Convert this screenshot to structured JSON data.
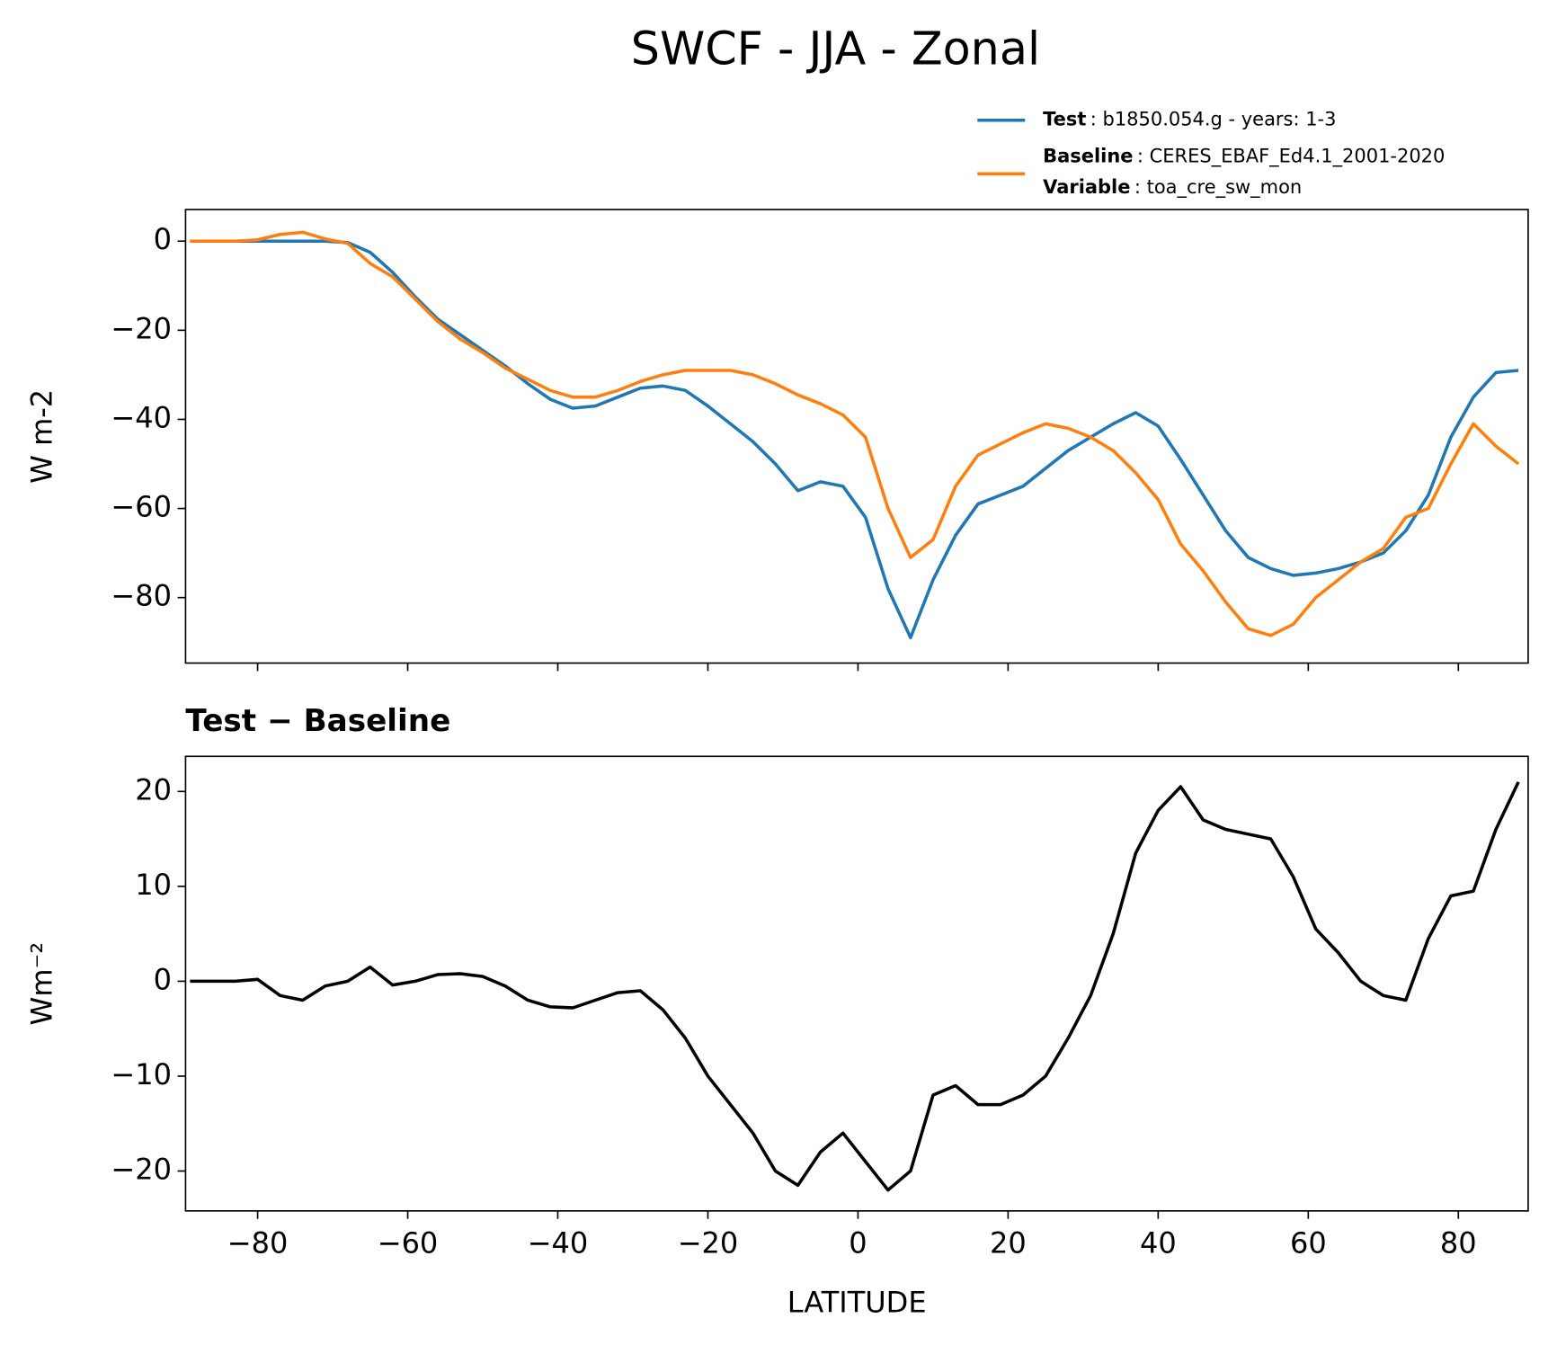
{
  "title": "SWCF - JJA - Zonal",
  "chart_data": [
    {
      "type": "line",
      "ylabel": "W m-2",
      "show_xtick_labels": false,
      "x": [
        -89,
        -86,
        -83,
        -80,
        -77,
        -74,
        -71,
        -68,
        -65,
        -62,
        -59,
        -56,
        -53,
        -50,
        -47,
        -44,
        -41,
        -38,
        -35,
        -32,
        -29,
        -26,
        -23,
        -20,
        -17,
        -14,
        -11,
        -8,
        -5,
        -2,
        1,
        4,
        7,
        10,
        13,
        16,
        19,
        22,
        25,
        28,
        31,
        34,
        37,
        40,
        43,
        46,
        49,
        52,
        55,
        58,
        61,
        64,
        67,
        70,
        73,
        76,
        79,
        82,
        85,
        88
      ],
      "series": [
        {
          "name": "Test",
          "description": ": b1850.054.g - years: 1-3",
          "color": "#1f77b4",
          "values": [
            0,
            0,
            0,
            0,
            0,
            0,
            0,
            -0.3,
            -2.5,
            -7,
            -12.5,
            -17.5,
            -21,
            -24.5,
            -28,
            -32,
            -35.5,
            -37.5,
            -37,
            -35,
            -33,
            -32.5,
            -33.5,
            -37,
            -41,
            -45,
            -50,
            -56,
            -54,
            -55,
            -62,
            -78,
            -89,
            -76,
            -66,
            -59,
            -57,
            -55,
            -51,
            -47,
            -44,
            -41,
            -38.5,
            -41.5,
            -49,
            -57,
            -65,
            -71,
            -73.5,
            -75,
            -74.5,
            -73.5,
            -72,
            -70,
            -65,
            -57,
            -44,
            -35,
            -29.5,
            -29
          ]
        },
        {
          "name": "Baseline",
          "description": ": CERES_EBAF_Ed4.1_2001-2020",
          "color": "#ff7f0e",
          "values": [
            0,
            0,
            0,
            0.3,
            1.5,
            2,
            0.5,
            -0.5,
            -5,
            -8,
            -13,
            -18,
            -22,
            -25,
            -28.5,
            -31,
            -33.5,
            -35,
            -35,
            -33.5,
            -31.5,
            -30,
            -29,
            -29,
            -29,
            -30,
            -32,
            -34.5,
            -36.5,
            -39,
            -44,
            -60,
            -71,
            -67,
            -55,
            -48,
            -45.5,
            -43,
            -41,
            -42,
            -44,
            -47,
            -52,
            -58,
            -68,
            -74,
            -81,
            -87,
            -88.5,
            -86,
            -80,
            -76,
            -72,
            -69,
            -62,
            -60,
            -50,
            -41,
            -46,
            -50
          ]
        }
      ],
      "legend_extra": {
        "name": "Variable",
        "description": ": toa_cre_sw_mon"
      },
      "xlim": [
        -89.6,
        89.3
      ],
      "xticks": [
        -80,
        -60,
        -40,
        -20,
        0,
        20,
        40,
        60,
        80
      ],
      "ylim": [
        -94.7,
        7.1
      ],
      "yticks": [
        {
          "value": -80,
          "label": "−80"
        },
        {
          "value": -60,
          "label": "−60"
        },
        {
          "value": -40,
          "label": "−40"
        },
        {
          "value": -20,
          "label": "−20"
        },
        0
      ]
    },
    {
      "type": "line",
      "title": "Test − Baseline",
      "xlabel": "LATITUDE",
      "ylabel": "Wm⁻²",
      "x": [
        -89,
        -86,
        -83,
        -80,
        -77,
        -74,
        -71,
        -68,
        -65,
        -62,
        -59,
        -56,
        -53,
        -50,
        -47,
        -44,
        -41,
        -38,
        -35,
        -32,
        -29,
        -26,
        -23,
        -20,
        -17,
        -14,
        -11,
        -8,
        -5,
        -2,
        1,
        4,
        7,
        10,
        13,
        16,
        19,
        22,
        25,
        28,
        31,
        34,
        37,
        40,
        43,
        46,
        49,
        52,
        55,
        58,
        61,
        64,
        67,
        70,
        73,
        76,
        79,
        82,
        85,
        88
      ],
      "series": [
        {
          "color": "#000000",
          "values": [
            0,
            0,
            0,
            0.2,
            -1.5,
            -2,
            -0.5,
            0,
            1.5,
            -0.4,
            0,
            0.7,
            0.8,
            0.5,
            -0.5,
            -2,
            -2.7,
            -2.8,
            -2,
            -1.2,
            -1,
            -3,
            -6,
            -10,
            -13,
            -16,
            -20,
            -21.5,
            -18,
            -16,
            -19,
            -22,
            -20,
            -12,
            -11,
            -13,
            -13,
            -12,
            -10,
            -6,
            -1.5,
            5,
            13.5,
            18,
            20.5,
            17,
            16,
            15.5,
            15,
            11,
            5.5,
            3,
            0,
            -1.5,
            -2,
            4.5,
            9,
            9.5,
            16,
            21
          ]
        }
      ],
      "xlim": [
        -89.6,
        89.3
      ],
      "xticks": [
        {
          "value": -80,
          "label": "−80"
        },
        {
          "value": -60,
          "label": "−60"
        },
        {
          "value": -40,
          "label": "−40"
        },
        {
          "value": -20,
          "label": "−20"
        },
        0,
        20,
        40,
        60,
        80
      ],
      "ylim": [
        -24.2,
        23.7
      ],
      "yticks": [
        {
          "value": -20,
          "label": "−20"
        },
        {
          "value": -10,
          "label": "−10"
        },
        0,
        10,
        20
      ]
    }
  ]
}
